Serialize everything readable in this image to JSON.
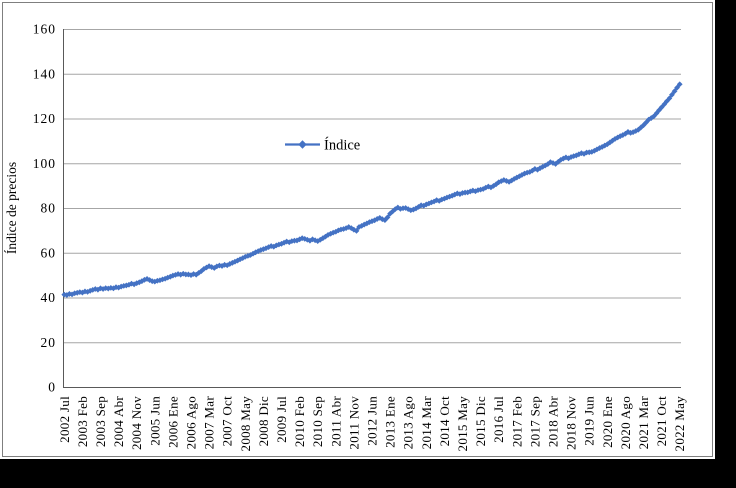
{
  "window": {
    "background": "#000000",
    "panel_background": "#FFFFFF",
    "panel_border": "#7F7F7F",
    "gridline_color": "#A6A6A6",
    "axis_color": "#595959"
  },
  "chart_data": {
    "type": "line",
    "title": "",
    "xlabel": "",
    "ylabel": "Índice de precios",
    "ylim": [
      0,
      160
    ],
    "y_ticks": [
      0,
      20,
      40,
      60,
      80,
      100,
      120,
      140,
      160
    ],
    "grid": "horizontal",
    "frequency": "monthly",
    "x_tick_labels": [
      "2002 Jul",
      "2003 Feb",
      "2003 Sep",
      "2004 Abr",
      "2004 Nov",
      "2005 Jun",
      "2006 Ene",
      "2006 Ago",
      "2007 Mar",
      "2007 Oct",
      "2008 May",
      "2008 Dic",
      "2009 Jul",
      "2010 Feb",
      "2010 Sep",
      "2011 Abr",
      "2011 Nov",
      "2012 Jun",
      "2013 Ene",
      "2013 Ago",
      "2014 Mar",
      "2014 Oct",
      "2015 May",
      "2015 Dic",
      "2016 Jul",
      "2017 Feb",
      "2017 Sep",
      "2018 Abr",
      "2018 Nov",
      "2019 Jun",
      "2020 Ene",
      "2020 Ago",
      "2021 Mar",
      "2021 Oct",
      "2022 May"
    ],
    "x_tick_interval_months": 7,
    "legend": {
      "position": "inside-top-center",
      "entries": [
        "Índice"
      ]
    },
    "series": [
      {
        "name": "Índice",
        "color": "#4472C4",
        "marker": "diamond",
        "start": "2002 Jul",
        "end": "2022 May",
        "values": [
          41.3,
          41.1,
          41.6,
          41.4,
          41.9,
          42.1,
          42.4,
          42.2,
          42.7,
          42.5,
          43.0,
          43.4,
          43.8,
          43.5,
          44.1,
          43.8,
          44.2,
          44.0,
          44.3,
          44.1,
          44.6,
          44.4,
          44.9,
          45.2,
          45.4,
          45.7,
          46.2,
          45.9,
          46.4,
          46.8,
          47.3,
          47.9,
          48.3,
          47.8,
          47.3,
          47.1,
          47.5,
          47.7,
          48.1,
          48.4,
          48.9,
          49.3,
          49.8,
          50.1,
          50.5,
          50.2,
          50.6,
          50.3,
          50.3,
          50.0,
          50.5,
          50.2,
          51.0,
          51.8,
          52.8,
          53.4,
          54.0,
          53.6,
          53.2,
          53.9,
          54.3,
          54.1,
          54.6,
          54.4,
          55.0,
          55.5,
          56.0,
          56.5,
          57.1,
          57.6,
          58.2,
          58.6,
          59.0,
          59.6,
          60.2,
          60.7,
          61.2,
          61.6,
          62.0,
          62.5,
          63.0,
          62.7,
          63.3,
          63.7,
          64.0,
          64.5,
          65.0,
          64.7,
          65.2,
          65.4,
          65.5,
          66.0,
          66.5,
          66.2,
          65.8,
          65.4,
          66.0,
          65.6,
          65.2,
          65.8,
          66.5,
          67.2,
          68.0,
          68.5,
          69.0,
          69.4,
          70.0,
          70.4,
          70.6,
          71.0,
          71.5,
          71.0,
          70.3,
          69.8,
          71.5,
          72.0,
          72.6,
          73.1,
          73.7,
          74.1,
          74.5,
          75.1,
          75.6,
          75.0,
          74.6,
          75.8,
          77.5,
          78.5,
          79.5,
          80.2,
          79.6,
          79.9,
          80.0,
          79.5,
          79.0,
          79.3,
          79.8,
          80.5,
          81.2,
          81.0,
          81.6,
          82.0,
          82.5,
          82.9,
          83.5,
          83.2,
          83.8,
          84.2,
          84.7,
          85.1,
          85.5,
          86.0,
          86.5,
          86.2,
          86.7,
          86.9,
          87.0,
          87.4,
          87.8,
          87.5,
          88.0,
          88.2,
          88.5,
          89.1,
          89.6,
          89.2,
          89.9,
          90.6,
          91.5,
          92.0,
          92.5,
          92.1,
          91.7,
          92.3,
          93.0,
          93.6,
          94.2,
          94.8,
          95.4,
          95.8,
          96.1,
          96.7,
          97.5,
          97.1,
          97.8,
          98.4,
          99.0,
          99.6,
          100.5,
          100.1,
          99.7,
          100.6,
          101.5,
          102.1,
          102.6,
          102.2,
          102.8,
          103.2,
          103.5,
          104.0,
          104.5,
          104.2,
          104.8,
          104.9,
          105.1,
          105.6,
          106.2,
          106.8,
          107.3,
          107.9,
          108.5,
          109.3,
          110.1,
          110.9,
          111.5,
          112.1,
          112.6,
          113.2,
          114.0,
          113.6,
          113.9,
          114.4,
          115.0,
          116.0,
          117.0,
          118.2,
          119.5,
          120.2,
          121.0,
          122.3,
          123.7,
          125.0,
          126.3,
          127.7,
          129.0,
          130.6,
          132.2,
          133.8,
          135.3
        ]
      }
    ]
  }
}
